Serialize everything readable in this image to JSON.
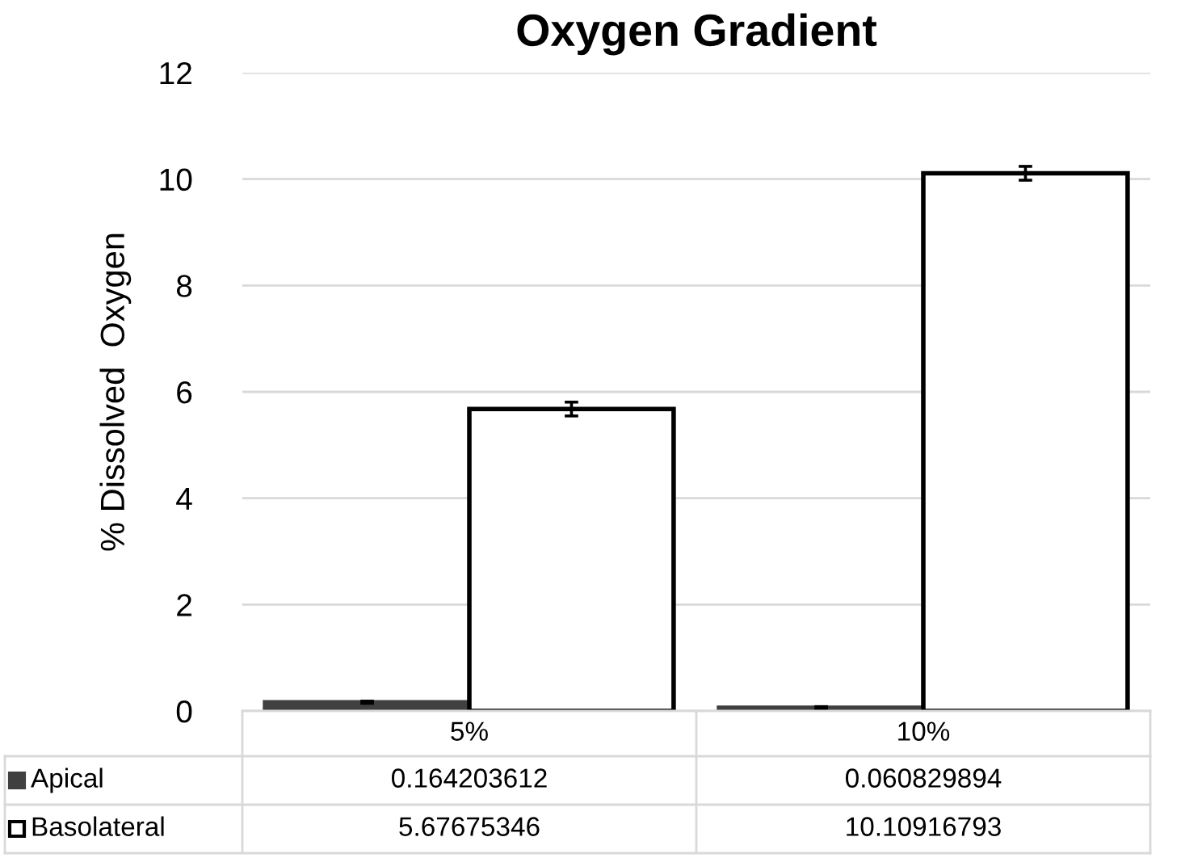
{
  "chart_data": {
    "type": "bar",
    "title": "Oxygen Gradient",
    "ylabel": "% Dissolved  Oxygen",
    "categories": [
      "5%",
      "10%"
    ],
    "series": [
      {
        "name": "Apical",
        "color": "#404040",
        "values": [
          0.164203612,
          0.060829894
        ],
        "errors": [
          0.02,
          0.02
        ]
      },
      {
        "name": "Basolateral",
        "color": "#ffffff",
        "values": [
          5.67675346,
          10.10916793
        ],
        "errors": [
          0.13,
          0.13
        ]
      }
    ],
    "ylim": [
      0,
      12
    ],
    "yticks": [
      0,
      2,
      4,
      6,
      8,
      10,
      12
    ],
    "grid": "y",
    "legend": "bottom",
    "data_labels": true
  }
}
